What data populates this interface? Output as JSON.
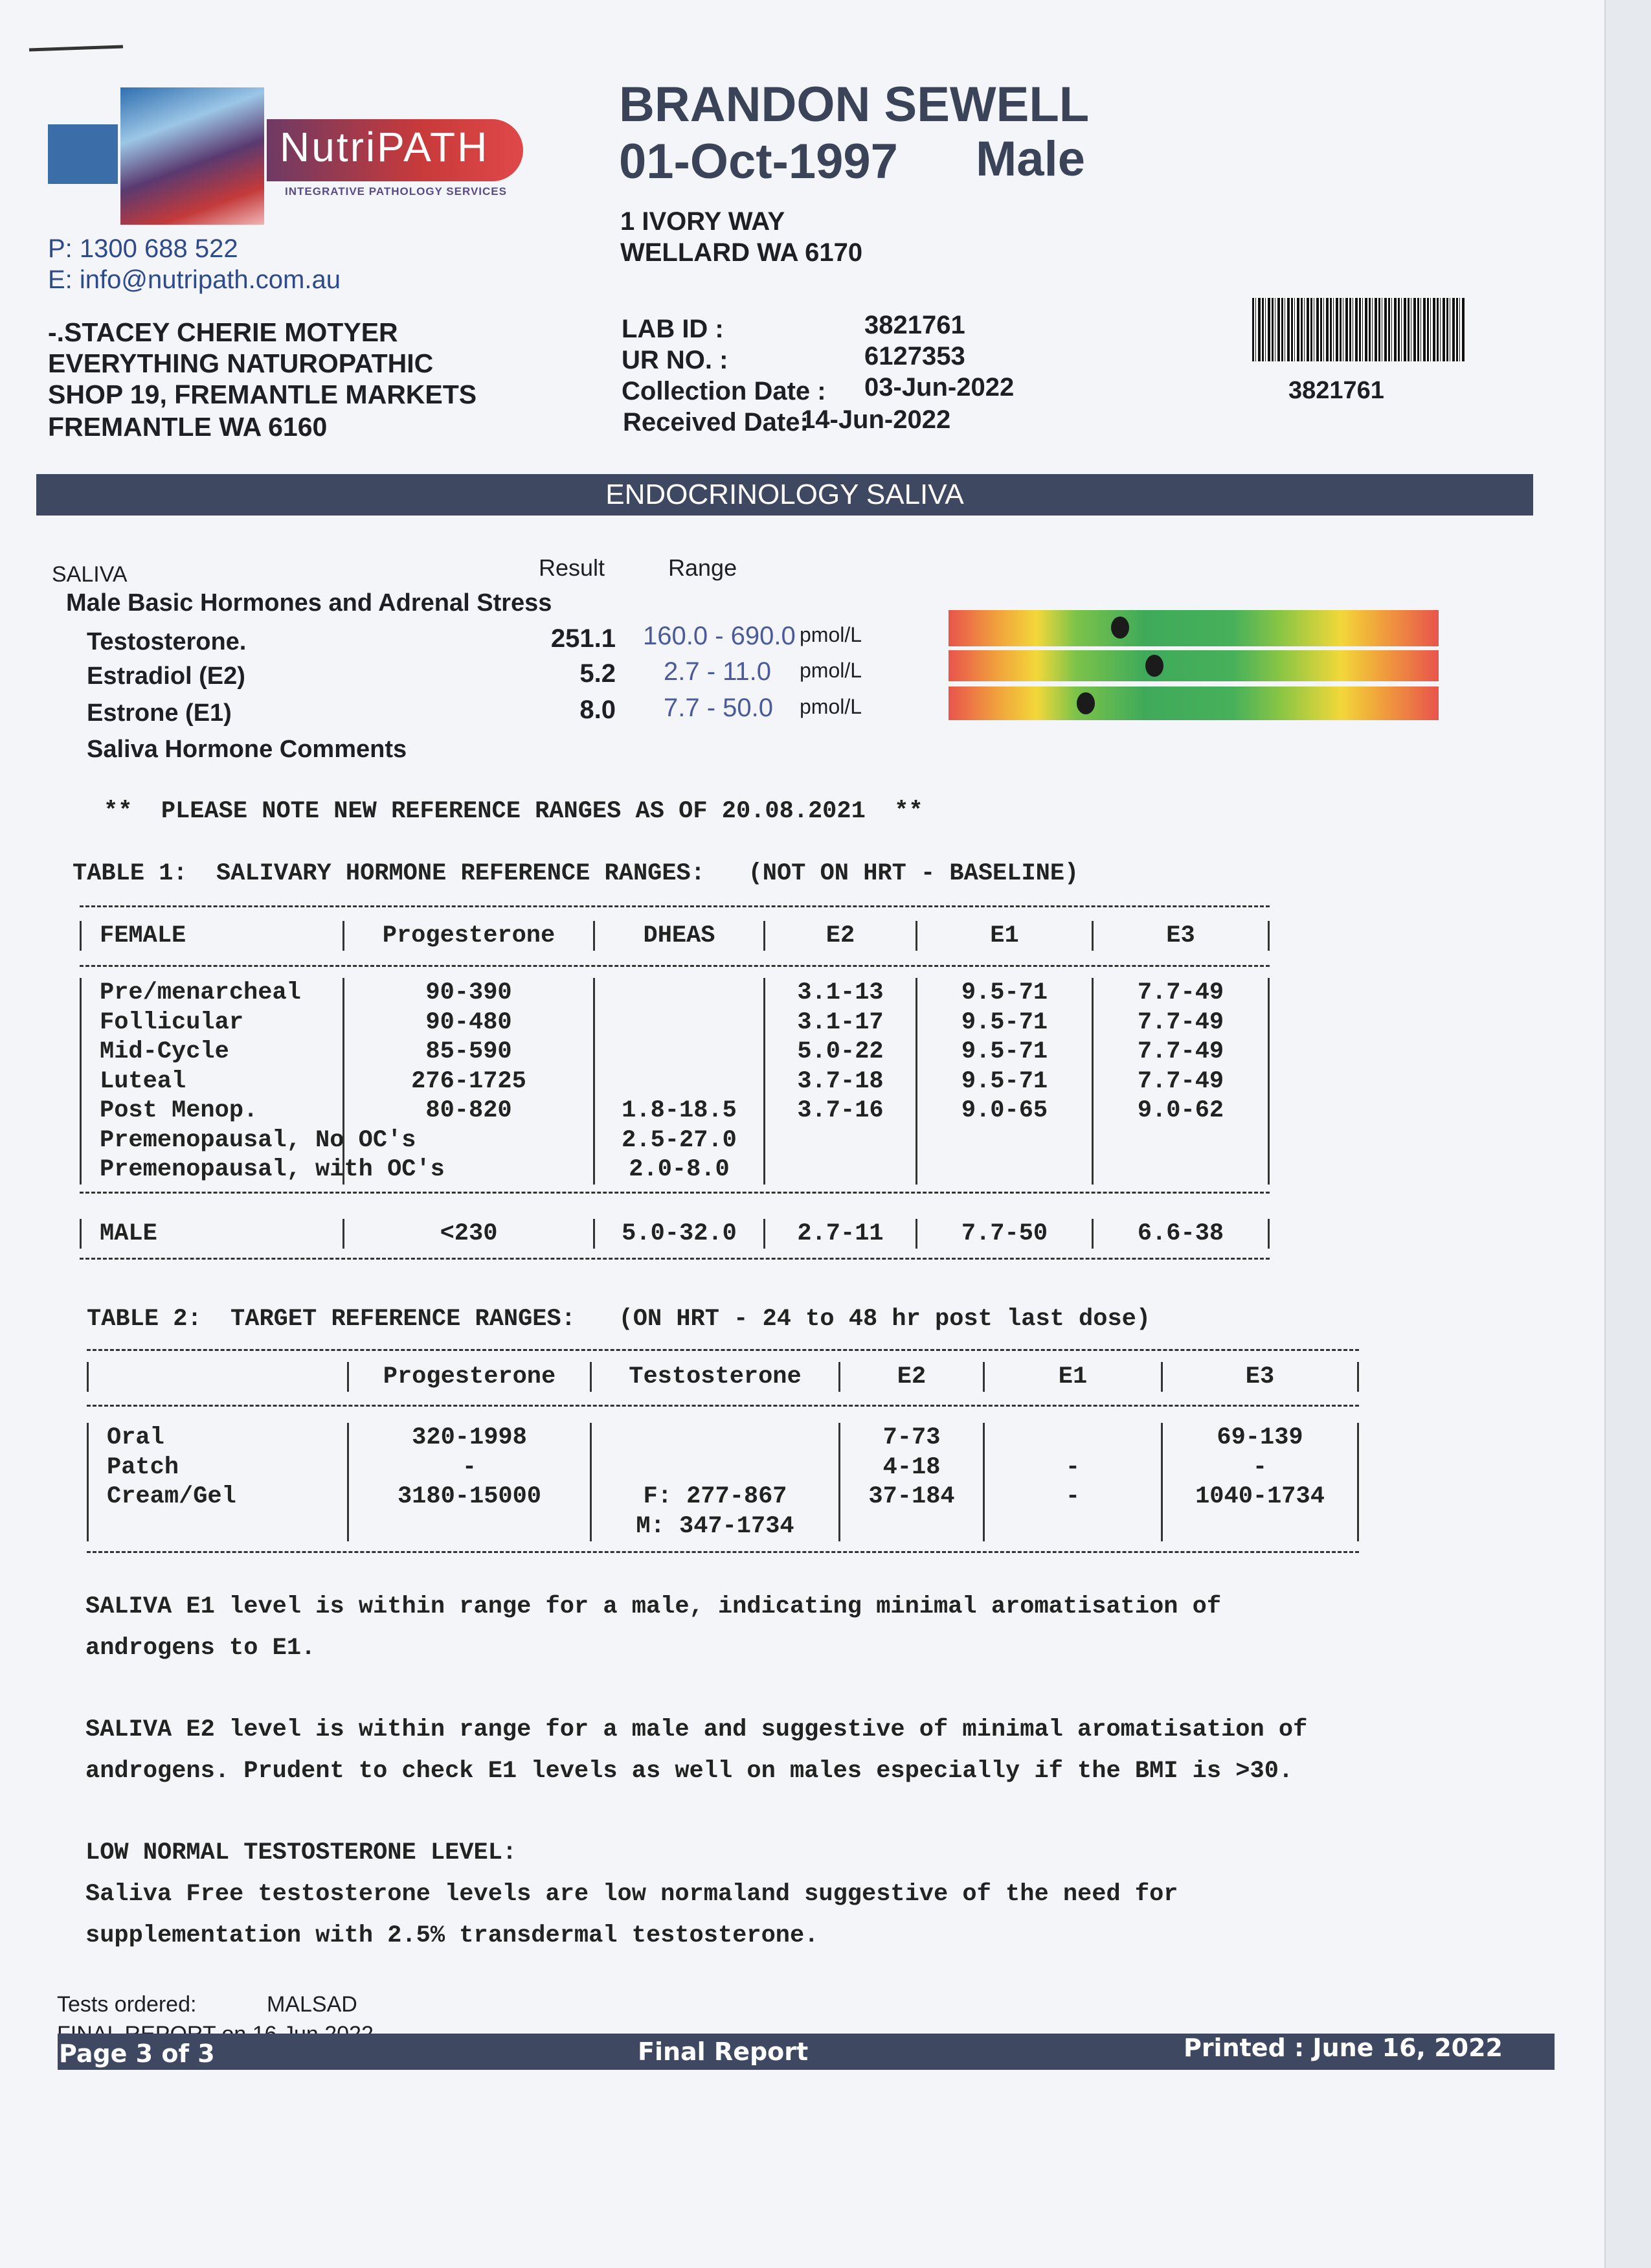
{
  "logo": {
    "name": "NutriPATH",
    "tagline": "INTEGRATIVE PATHOLOGY SERVICES"
  },
  "lab_contact": {
    "phone": "P: 1300 688 522",
    "email": "E: info@nutripath.com.au"
  },
  "patient": {
    "name": "BRANDON SEWELL",
    "dob": "01-Oct-1997",
    "sex": "Male",
    "address_line1": "1  IVORY WAY",
    "address_line2": "WELLARD WA 6170"
  },
  "practitioner": {
    "line1": "-.STACEY CHERIE MOTYER",
    "line2": "EVERYTHING NATUROPATHIC",
    "line3": "SHOP 19, FREMANTLE MARKETS",
    "line4": "FREMANTLE WA 6160"
  },
  "ids": [
    {
      "label": "LAB ID :",
      "value": "3821761"
    },
    {
      "label": "UR NO. :",
      "value": "6127353"
    },
    {
      "label": "Collection Date :",
      "value": "03-Jun-2022"
    },
    {
      "label": "Received Date:",
      "value": "14-Jun-2022"
    }
  ],
  "barcode_number": "3821761",
  "section_title": "ENDOCRINOLOGY SALIVA",
  "results": {
    "specimen": "SALIVA",
    "result_header": "Result",
    "range_header": "Range",
    "panel": "Male Basic Hormones and Adrenal Stress",
    "tests": [
      {
        "name": "Testosterone.",
        "result": "251.1",
        "range": "160.0 - 690.0",
        "unit": "pmol/L",
        "marker_percent": 35
      },
      {
        "name": "Estradiol (E2)",
        "result": "5.2",
        "range": "2.7 - 11.0",
        "unit": "pmol/L",
        "marker_percent": 42
      },
      {
        "name": "Estrone (E1)",
        "result": "8.0",
        "range": "7.7 - 50.0",
        "unit": "pmol/L",
        "marker_percent": 28
      }
    ],
    "comments_heading": "Saliva Hormone Comments"
  },
  "note": "**  PLEASE NOTE NEW REFERENCE RANGES AS OF 20.08.2021  **",
  "table1": {
    "title": "TABLE 1:  SALIVARY HORMONE REFERENCE RANGES:   (NOT ON HRT - BASELINE)",
    "headers": [
      "FEMALE",
      "Progesterone",
      "DHEAS",
      "E2",
      "E1",
      "E3"
    ],
    "rows": [
      [
        "Pre/menarcheal",
        "90-390",
        "",
        "3.1-13",
        "9.5-71",
        "7.7-49"
      ],
      [
        "Follicular",
        "90-480",
        "",
        "3.1-17",
        "9.5-71",
        "7.7-49"
      ],
      [
        "Mid-Cycle",
        "85-590",
        "",
        "5.0-22",
        "9.5-71",
        "7.7-49"
      ],
      [
        "Luteal",
        "276-1725",
        "",
        "3.7-18",
        "9.5-71",
        "7.7-49"
      ],
      [
        "Post Menop.",
        "80-820",
        "1.8-18.5",
        "3.7-16",
        "9.0-65",
        "9.0-62"
      ],
      [
        "Premenopausal, No OC's",
        "",
        "2.5-27.0",
        "",
        "",
        ""
      ],
      [
        "Premenopausal, with OC's",
        "",
        "2.0-8.0",
        "",
        "",
        ""
      ]
    ],
    "male_row": [
      "MALE",
      "<230",
      "5.0-32.0",
      "2.7-11",
      "7.7-50",
      "6.6-38"
    ]
  },
  "table2": {
    "title": "TABLE 2:  TARGET REFERENCE RANGES:   (ON HRT - 24 to 48 hr post last dose)",
    "headers": [
      "",
      "Progesterone",
      "Testosterone",
      "E2",
      "E1",
      "E3"
    ],
    "rows": [
      [
        "Oral",
        "320-1998",
        "",
        "7-73",
        "",
        "69-139"
      ],
      [
        "Patch",
        "-",
        "",
        "4-18",
        "-",
        "-"
      ],
      [
        "Cream/Gel",
        "3180-15000",
        "F: 277-867",
        "37-184",
        "-",
        "1040-1734"
      ],
      [
        "",
        "",
        "M: 347-1734",
        "",
        "",
        ""
      ]
    ]
  },
  "comments": [
    [
      "SALIVA E1 level is within range for a male, indicating minimal aromatisation of",
      "androgens to E1."
    ],
    [
      "SALIVA E2 level is within range for a male and suggestive of minimal aromatisation of",
      "androgens. Prudent to check E1 levels as well on males especially if the BMI is >30."
    ],
    [
      "LOW NORMAL TESTOSTERONE LEVEL:",
      "Saliva Free testosterone levels are low normaland suggestive of the need for",
      "supplementation with 2.5% transdermal testosterone."
    ]
  ],
  "footer": {
    "tests_ordered_label": "Tests ordered:",
    "tests_ordered_value": "MALSAD",
    "final_report_on": "FINAL REPORT on 16 Jun 2022",
    "page": "Page 3 of 3",
    "status": "Final Report",
    "printed": "Printed : June 16, 2022"
  },
  "colors": {
    "band": "#3f4861",
    "range_text": "#2f4a8a",
    "bar_low": "#e8544c",
    "bar_mid": "#3faa5a",
    "bar_warn": "#f2d83a"
  }
}
